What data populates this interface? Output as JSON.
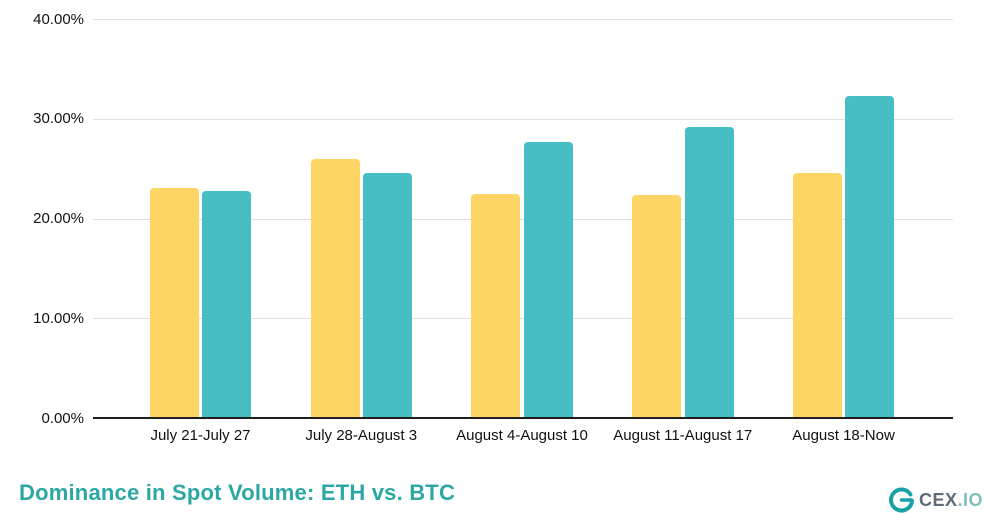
{
  "title": "Dominance in Spot Volume: ETH vs. BTC",
  "branding": {
    "icon": "cexio-swirl-icon",
    "text_primary": "CEX",
    "text_secondary": ".IO"
  },
  "colors": {
    "yellow_bar": "#FCD564",
    "teal_bar": "#47BDC4",
    "title": "#2BA8A3",
    "gridline": "#e0e0e0",
    "axis": "#1f1f1f",
    "tick_text": "#111111"
  },
  "chart_data": {
    "type": "bar",
    "title": "Dominance in Spot Volume: ETH vs. BTC",
    "categories": [
      "July 21-July 27",
      "July 28-August 3",
      "August 4-August 10",
      "August 11-August 17",
      "August 18-Now"
    ],
    "series": [
      {
        "name": "yellow",
        "color": "#FCD564",
        "values": [
          23.1,
          26.0,
          22.5,
          22.4,
          24.6
        ]
      },
      {
        "name": "teal",
        "color": "#47BDC4",
        "values": [
          22.8,
          24.6,
          27.7,
          29.2,
          32.3
        ]
      }
    ],
    "ylim": [
      0,
      40
    ],
    "y_ticks": [
      {
        "value": 40,
        "label": "40.00%"
      },
      {
        "value": 30,
        "label": "30.00%"
      },
      {
        "value": 20,
        "label": "20.00%"
      },
      {
        "value": 10,
        "label": "10.00%"
      },
      {
        "value": 0,
        "label": "0.00%"
      }
    ],
    "grid": true,
    "legend": "none",
    "xlabel": "",
    "ylabel": ""
  }
}
